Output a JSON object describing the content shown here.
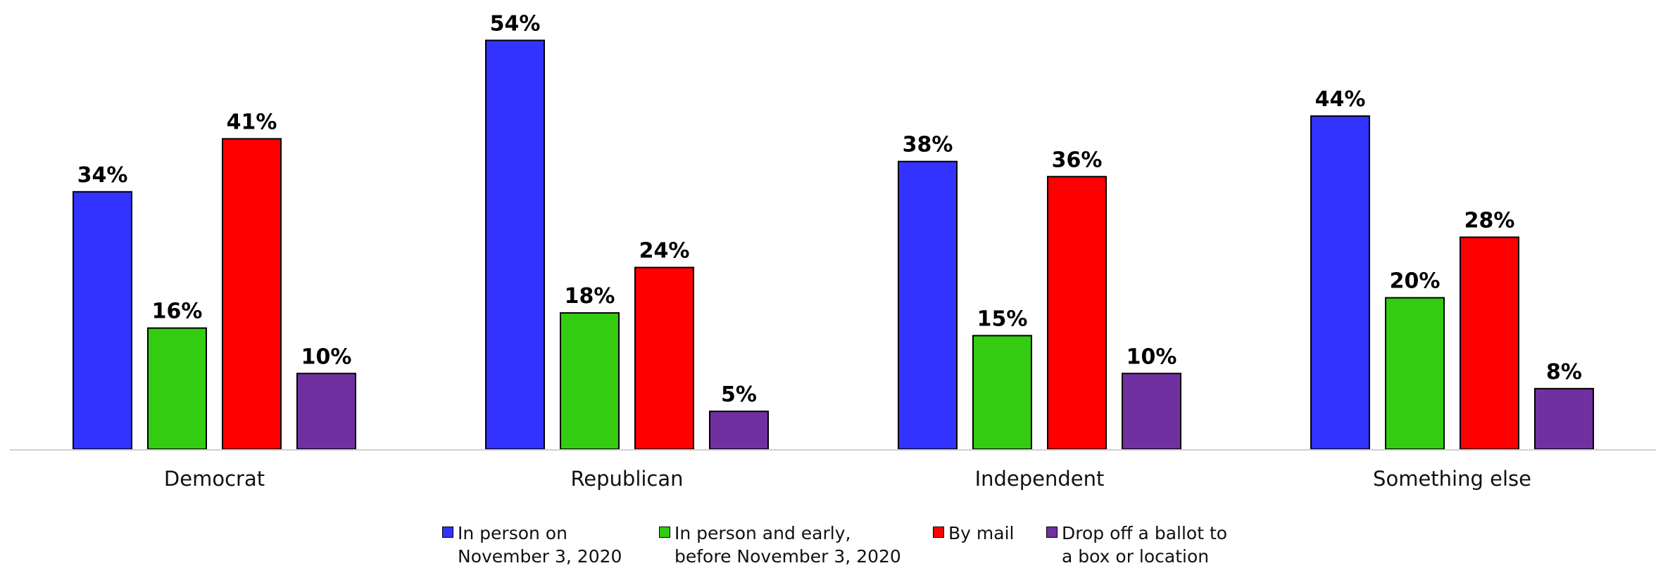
{
  "chart_data": {
    "type": "bar",
    "categories": [
      "Democrat",
      "Republican",
      "Independent",
      "Something else"
    ],
    "series": [
      {
        "name": "In person on\nNovember 3, 2020",
        "color": "#3333ff",
        "values": [
          34,
          54,
          38,
          44
        ]
      },
      {
        "name": "In person and early,\nbefore November 3, 2020",
        "color": "#33cc11",
        "values": [
          16,
          18,
          15,
          20
        ]
      },
      {
        "name": "By mail",
        "color": "#ff0000",
        "values": [
          41,
          24,
          36,
          28
        ]
      },
      {
        "name": "Drop off a ballot to\na box or location",
        "color": "#7030a0",
        "values": [
          10,
          5,
          10,
          8
        ]
      }
    ],
    "data_labels": [
      [
        "34%",
        "16%",
        "41%",
        "10%"
      ],
      [
        "54%",
        "18%",
        "24%",
        "5%"
      ],
      [
        "38%",
        "15%",
        "36%",
        "10%"
      ],
      [
        "44%",
        "20%",
        "28%",
        "8%"
      ]
    ],
    "unit": "%",
    "ylim": [
      0,
      54
    ],
    "grid": false,
    "legend": "bottom"
  }
}
